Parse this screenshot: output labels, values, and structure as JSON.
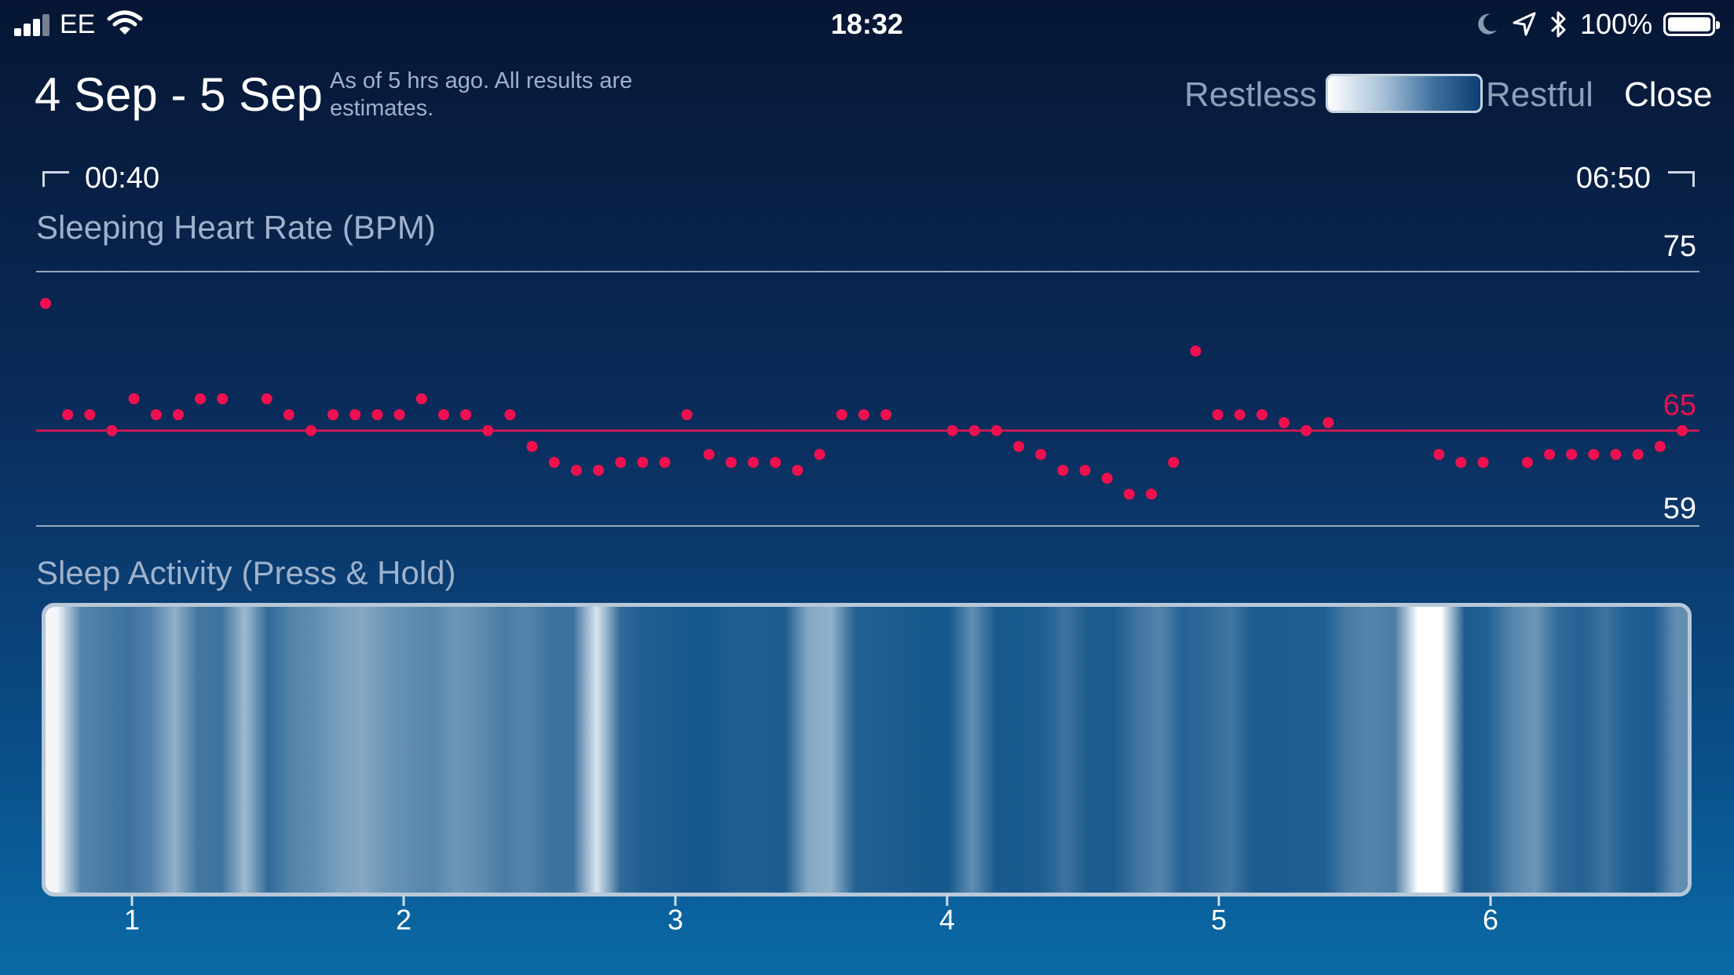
{
  "status_bar": {
    "carrier": "EE",
    "time": "18:32",
    "battery": "100%",
    "icons": [
      "signal-icon",
      "wifi-icon",
      "moon-icon",
      "location-arrow-icon",
      "bluetooth-icon",
      "battery-icon"
    ]
  },
  "header": {
    "date_range": "4 Sep - 5 Sep",
    "subtitle": "As of 5 hrs ago. All results are estimates.",
    "legend_restless": "Restless",
    "legend_restful": "Restful",
    "close_label": "Close"
  },
  "timeline": {
    "start": "00:40",
    "end": "06:50"
  },
  "heart_rate": {
    "title": "Sleeping Heart Rate (BPM)"
  },
  "sleep_activity": {
    "title": "Sleep Activity (Press & Hold)"
  },
  "colors": {
    "accent_dot": "#f0104f",
    "reference_line": "#e8134f"
  },
  "chart_data": [
    {
      "type": "scatter",
      "title": "Sleeping Heart Rate (BPM)",
      "x_label_start": "00:40",
      "x_label_end": "06:50",
      "x": [
        0,
        1,
        2,
        3,
        4,
        5,
        6,
        7,
        8,
        9,
        10,
        11,
        12,
        13,
        14,
        15,
        16,
        17,
        18,
        19,
        20,
        21,
        22,
        23,
        24,
        25,
        26,
        27,
        28,
        29,
        30,
        31,
        32,
        33,
        34,
        35,
        36,
        37,
        38,
        39,
        40,
        41,
        42,
        43,
        44,
        45,
        46,
        47,
        48,
        49,
        50,
        51,
        52,
        53,
        54,
        55,
        56,
        57,
        58,
        59,
        60,
        61,
        62,
        63,
        64,
        65,
        66,
        67,
        68,
        69,
        70,
        71,
        72,
        73,
        74
      ],
      "y": [
        73,
        66,
        66,
        65,
        67,
        66,
        66,
        67,
        67,
        null,
        67,
        66,
        65,
        66,
        66,
        66,
        66,
        67,
        66,
        66,
        65,
        66,
        64,
        63,
        62.5,
        62.5,
        63,
        63,
        63,
        66,
        63.5,
        63,
        63,
        63,
        62.5,
        63.5,
        66,
        66,
        66,
        null,
        null,
        65,
        65,
        65,
        64,
        63.5,
        62.5,
        62.5,
        62,
        61,
        61,
        63,
        70,
        66,
        66,
        66,
        65.5,
        65,
        65.5,
        null,
        null,
        null,
        null,
        63.5,
        63,
        63,
        null,
        63,
        63.5,
        63.5,
        63.5,
        63.5,
        63.5,
        64,
        65
      ],
      "reference_values": [
        75,
        65,
        59
      ],
      "ylim": [
        59,
        75
      ]
    },
    {
      "type": "heatmap",
      "title": "Sleep Activity (Press & Hold)",
      "legend": [
        "Restless",
        "Restful"
      ],
      "x_ticks": [
        "1",
        "2",
        "3",
        "4",
        "5",
        "6"
      ],
      "restlessness": [
        0.95,
        0.3,
        0.25,
        0.2,
        0.28,
        0.55,
        0.22,
        0.2,
        0.6,
        0.15,
        0.3,
        0.35,
        0.45,
        0.5,
        0.4,
        0.35,
        0.3,
        0.4,
        0.35,
        0.25,
        0.3,
        0.2,
        0.2,
        0.85,
        0.15,
        0.08,
        0.06,
        0.05,
        0.05,
        0.08,
        0.08,
        0.06,
        0.5,
        0.55,
        0.1,
        0.08,
        0.06,
        0.05,
        0.05,
        0.35,
        0.06,
        0.05,
        0.08,
        0.2,
        0.06,
        0.06,
        0.2,
        0.3,
        0.1,
        0.15,
        0.22,
        0.06,
        0.06,
        0.08,
        0.08,
        0.25,
        0.3,
        0.25,
        1.0,
        1.0,
        0.06,
        0.1,
        0.3,
        0.4,
        0.15,
        0.1,
        0.2,
        0.08,
        0.06,
        0.35
      ]
    }
  ]
}
